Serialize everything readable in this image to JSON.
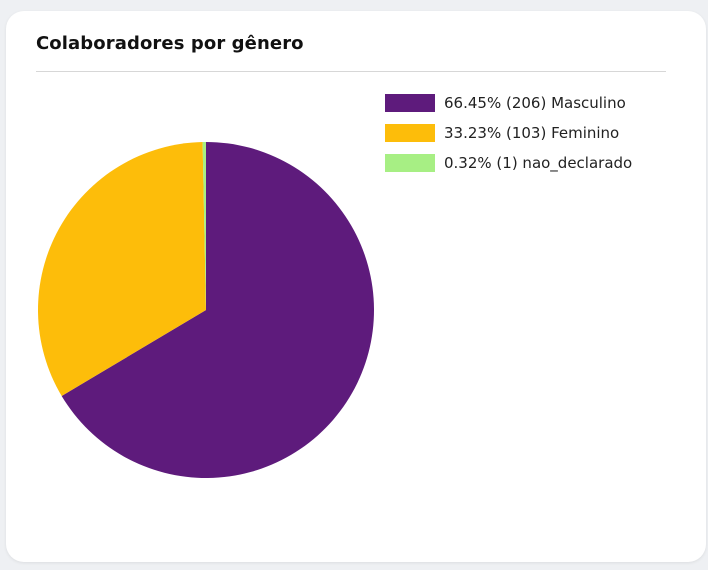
{
  "card": {
    "title": "Colaboradores por gênero"
  },
  "chart_data": {
    "type": "pie",
    "title": "Colaboradores por gênero",
    "legend_placement": "top-right",
    "slices": [
      {
        "label": "Masculino",
        "count": 206,
        "percent": 66.45,
        "legend": "66.45% (206) Masculino",
        "color": "#5e1b7c"
      },
      {
        "label": "Feminino",
        "count": 103,
        "percent": 33.23,
        "legend": "33.23% (103) Feminino",
        "color": "#fdbd0a"
      },
      {
        "label": "nao_declarado",
        "count": 1,
        "percent": 0.32,
        "legend": "0.32% (1) nao_declarado",
        "color": "#a7ef84"
      }
    ]
  }
}
